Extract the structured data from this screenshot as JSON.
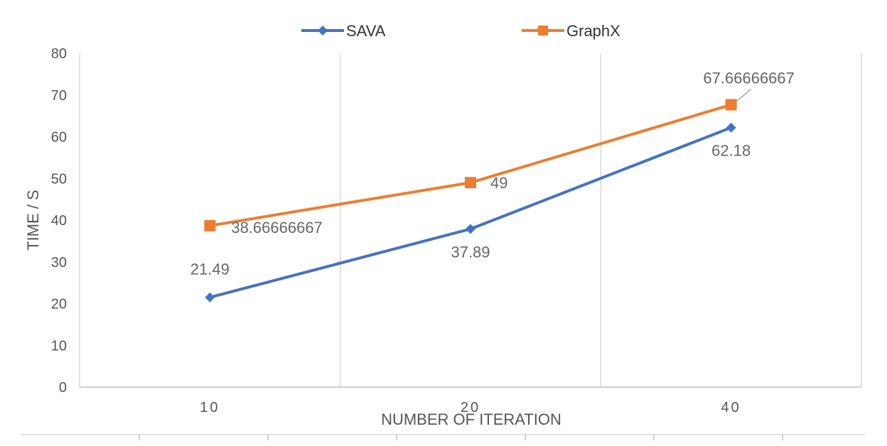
{
  "chart_data": {
    "type": "line",
    "categories": [
      "10",
      "20",
      "40"
    ],
    "series": [
      {
        "name": "SAVA",
        "values": [
          21.49,
          37.89,
          62.18
        ],
        "color": "#4472C4",
        "marker": "diamond",
        "labels": [
          "21.49",
          "37.89",
          "62.18"
        ]
      },
      {
        "name": "GraphX",
        "values": [
          38.66666667,
          49,
          67.66666667
        ],
        "color": "#ED7D31",
        "marker": "square",
        "labels": [
          "38.66666667",
          "49",
          "67.66666667"
        ]
      }
    ],
    "xlabel": "NUMBER OF ITERATION",
    "ylabel": "TIME / S",
    "ylim": [
      0,
      80
    ],
    "yticks": [
      "0",
      "10",
      "20",
      "30",
      "40",
      "50",
      "60",
      "70",
      "80"
    ],
    "grid": "vertical",
    "legend_position": "top"
  }
}
